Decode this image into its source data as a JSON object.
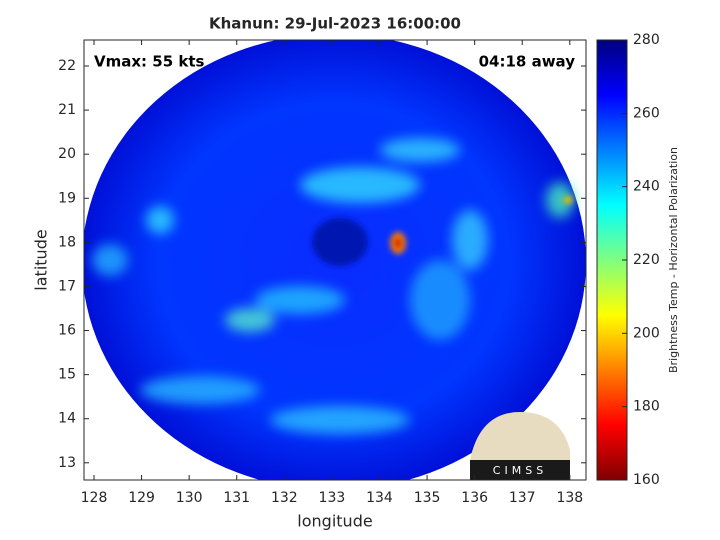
{
  "chart_data": {
    "type": "image",
    "title": "Khanun: 29-Jul-2023 16:00:00",
    "annotations": [
      "Vmax: 55 kts",
      "04:18 away"
    ],
    "xlabel": "longitude",
    "ylabel": "latitude",
    "xlim": [
      127.79,
      138.34
    ],
    "xticks": [
      128,
      129,
      130,
      131,
      132,
      133,
      134,
      135,
      136,
      137,
      138
    ],
    "ylim": [
      12.61,
      22.59
    ],
    "yticks": [
      13,
      14,
      15,
      16,
      17,
      18,
      19,
      20,
      21,
      22
    ],
    "colorbar": {
      "label": "Brightness Temp - Horizontal Polarization",
      "lim": [
        160,
        280
      ],
      "ticks": [
        160,
        180,
        200,
        220,
        240,
        260,
        280
      ]
    },
    "logo": "CIMSS"
  }
}
